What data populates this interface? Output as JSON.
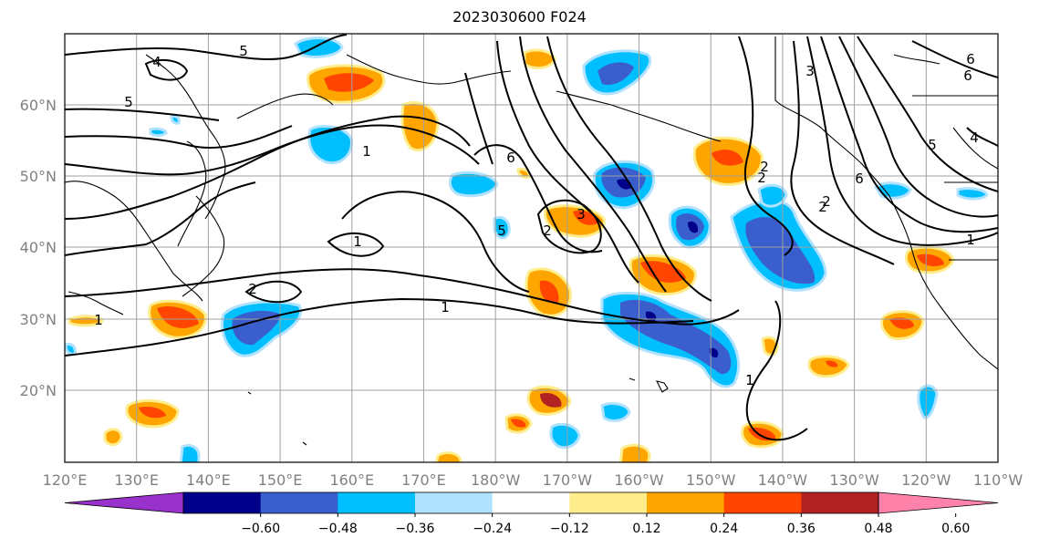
{
  "title": "2023030600 F024",
  "map": {
    "lon_range": [
      "120°E",
      "110°W"
    ],
    "lat_range": [
      "10°N",
      "70°N"
    ],
    "gridlines": true,
    "lon_ticks": [
      "120°E",
      "130°E",
      "140°E",
      "150°E",
      "160°E",
      "170°E",
      "180°W",
      "170°W",
      "160°W",
      "150°W",
      "140°W",
      "130°W",
      "120°W",
      "110°W"
    ],
    "lat_ticks": [
      "20°N",
      "30°N",
      "40°N",
      "50°N",
      "60°N"
    ],
    "coastline_color": "#000000",
    "contour_color": "#000000",
    "contour_labels": [
      "5",
      "4",
      "5",
      "1",
      "1",
      "2",
      "6",
      "3",
      "5",
      "2",
      "2",
      "1",
      "1",
      "1",
      "2",
      "3",
      "6",
      "2",
      "2",
      "4",
      "6",
      "5",
      "6",
      "1",
      "1"
    ]
  },
  "colorbar": {
    "ticks": [
      "−0.60",
      "−0.48",
      "−0.36",
      "−0.24",
      "−0.12",
      "0.12",
      "0.24",
      "0.36",
      "0.48",
      "0.60"
    ],
    "colors": [
      "#9932cc",
      "#00008b",
      "#3a5fcd",
      "#00bfff",
      "#b0e2ff",
      "#ffffff",
      "#ffec8b",
      "#ffa500",
      "#ff4500",
      "#b22222",
      "#ff82ab"
    ],
    "extend": "both"
  }
}
